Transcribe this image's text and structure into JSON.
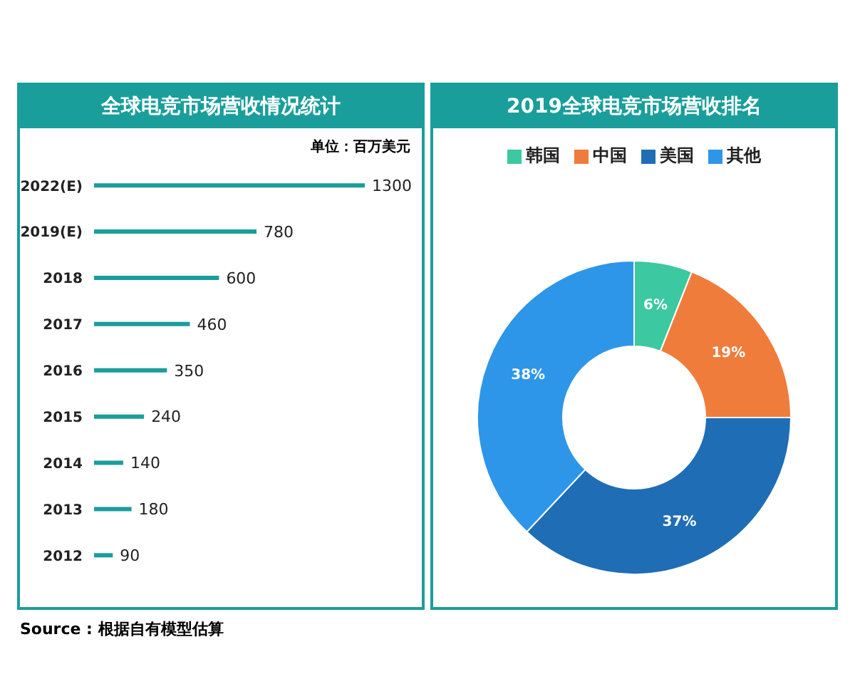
{
  "chart_data": [
    {
      "type": "bar",
      "orientation": "horizontal",
      "title": "全球电竞市场营收情况统计",
      "subtitle": "单位：百万美元",
      "categories": [
        "2022(E)",
        "2019(E)",
        "2018",
        "2017",
        "2016",
        "2015",
        "2014",
        "2013",
        "2012"
      ],
      "values": [
        1300,
        780,
        600,
        460,
        350,
        240,
        140,
        180,
        90
      ],
      "color": "#1a9e9b",
      "data_labels": true,
      "annotations": [
        "Source : 根据自有模型估算"
      ]
    },
    {
      "type": "donut",
      "title": "2019全球电竞市场营收排名",
      "categories": [
        "韩国",
        "中国",
        "美国",
        "其他"
      ],
      "values": [
        6,
        19,
        37,
        38
      ],
      "colors": [
        "#3cc8a0",
        "#f07c3c",
        "#1f6db5",
        "#2e96e8"
      ],
      "value_labels": [
        "6%",
        "19%",
        "37%",
        "38%"
      ],
      "legend": "top"
    }
  ]
}
